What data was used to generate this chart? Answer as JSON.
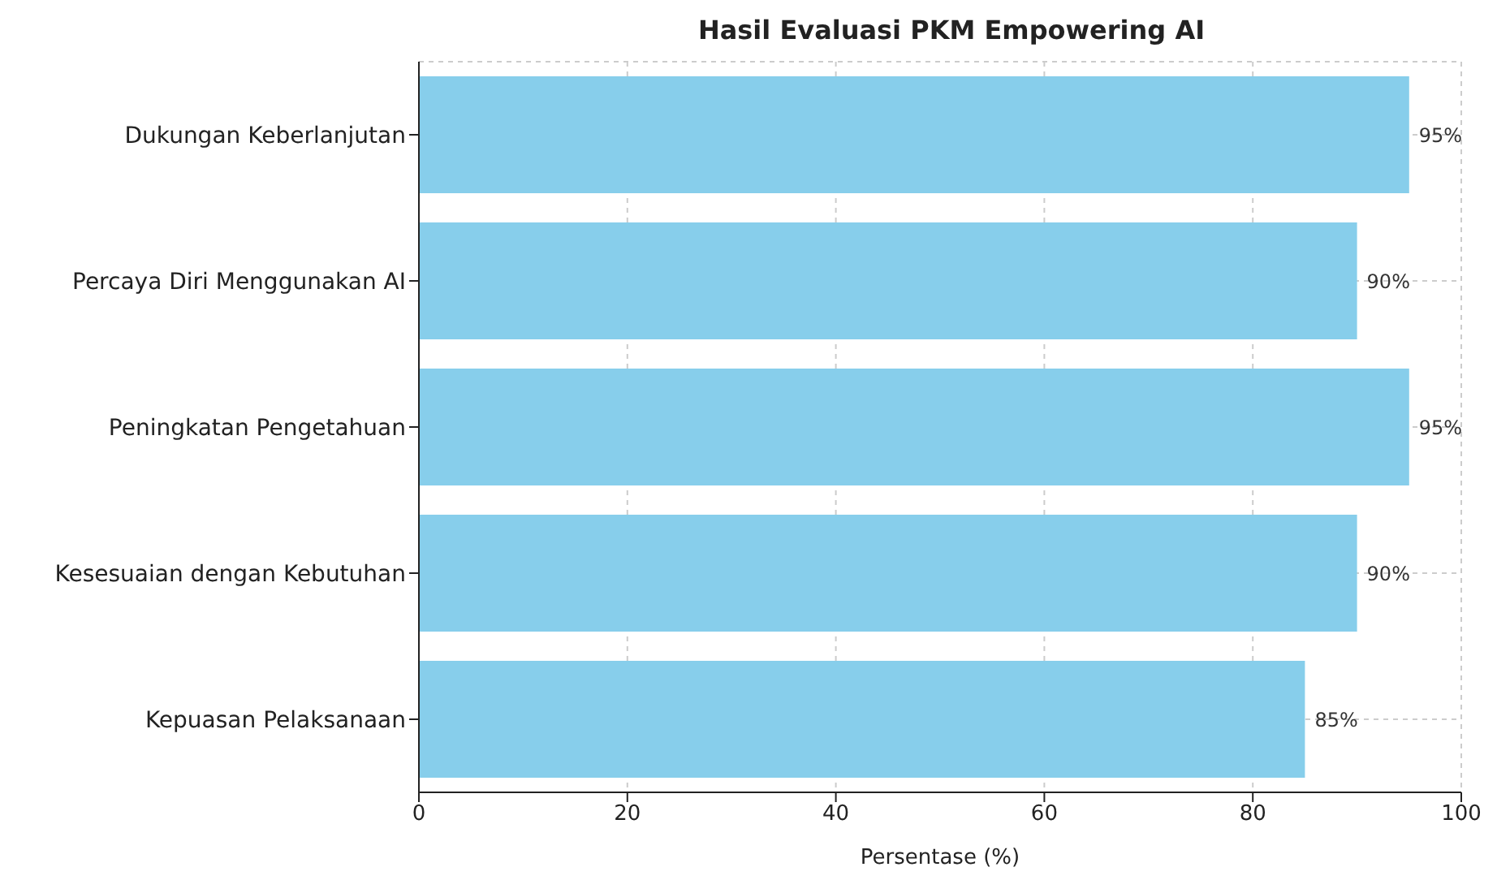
{
  "chart_data": {
    "type": "bar",
    "orientation": "horizontal",
    "title": "Hasil Evaluasi PKM Empowering AI",
    "xlabel": "Persentase (%)",
    "categories": [
      "Dukungan Keberlanjutan",
      "Percaya Diri Menggunakan AI",
      "Peningkatan Pengetahuan",
      "Kesesuaian dengan Kebutuhan",
      "Kepuasan Pelaksanaan"
    ],
    "values": [
      95,
      90,
      95,
      90,
      85
    ],
    "value_labels": [
      "95%",
      "90%",
      "95%",
      "90%",
      "85%"
    ],
    "color": "#87ceeb",
    "xlim": [
      0,
      100
    ],
    "xticks": [
      0,
      20,
      40,
      60,
      80,
      100
    ],
    "grid": true
  }
}
